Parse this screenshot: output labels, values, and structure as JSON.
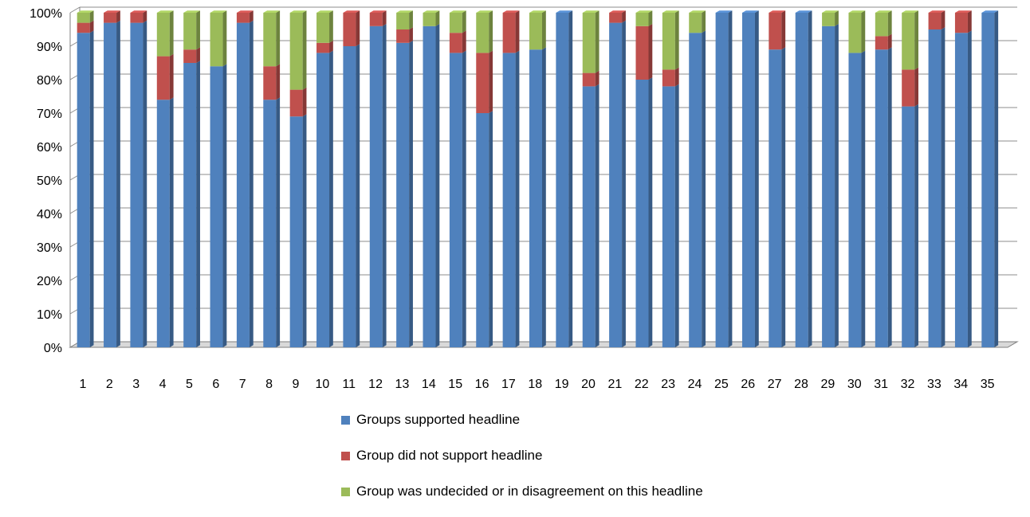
{
  "chart_data": {
    "type": "bar",
    "stacked": true,
    "percent": true,
    "categories": [
      "1",
      "2",
      "3",
      "4",
      "5",
      "6",
      "7",
      "8",
      "9",
      "10",
      "11",
      "12",
      "13",
      "14",
      "15",
      "16",
      "17",
      "18",
      "19",
      "20",
      "21",
      "22",
      "23",
      "24",
      "25",
      "26",
      "27",
      "28",
      "29",
      "30",
      "31",
      "32",
      "33",
      "34",
      "35"
    ],
    "ylim": [
      0,
      100
    ],
    "yticks": [
      "0%",
      "10%",
      "20%",
      "30%",
      "40%",
      "50%",
      "60%",
      "70%",
      "80%",
      "90%",
      "100%"
    ],
    "grid": true,
    "legend_position": "bottom",
    "series": [
      {
        "name": "Groups supported headline",
        "color": "#4F81BD",
        "values": [
          94,
          97,
          97,
          74,
          85,
          84,
          97,
          74,
          69,
          88,
          90,
          96,
          91,
          96,
          88,
          70,
          88,
          89,
          100,
          78,
          97,
          80,
          78,
          94,
          100,
          100,
          89,
          100,
          96,
          88,
          89,
          72,
          95,
          94,
          100
        ]
      },
      {
        "name": "Group did not support headline",
        "color": "#C0504D",
        "values": [
          3,
          3,
          3,
          13,
          4,
          0,
          3,
          10,
          8,
          3,
          10,
          4,
          4,
          0,
          6,
          18,
          12,
          0,
          0,
          4,
          3,
          16,
          5,
          0,
          0,
          0,
          11,
          0,
          0,
          0,
          4,
          11,
          5,
          6,
          0
        ]
      },
      {
        "name": "Group was undecided or in disagreement on this headline",
        "color": "#9BBB59",
        "values": [
          3,
          0,
          0,
          13,
          11,
          16,
          0,
          16,
          23,
          9,
          0,
          0,
          5,
          4,
          6,
          12,
          0,
          11,
          0,
          18,
          0,
          4,
          17,
          6,
          0,
          0,
          0,
          0,
          4,
          12,
          7,
          17,
          0,
          0,
          0
        ]
      }
    ]
  }
}
